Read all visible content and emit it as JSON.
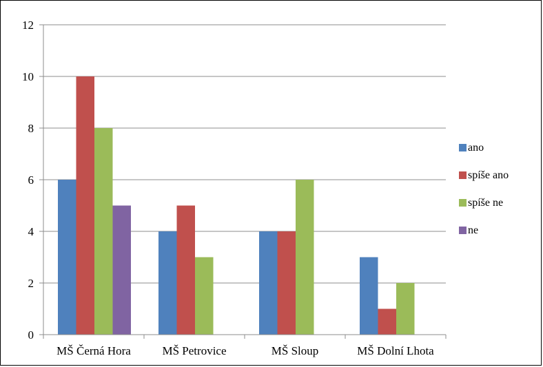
{
  "chart_data": {
    "type": "bar",
    "title": "",
    "xlabel": "",
    "ylabel": "",
    "categories": [
      "MŠ Černá Hora",
      "MŠ Petrovice",
      "MŠ Sloup",
      "MŠ Dolní Lhota"
    ],
    "series": [
      {
        "name": "ano",
        "color": "#4f81bd",
        "values": [
          6,
          4,
          4,
          3
        ]
      },
      {
        "name": "spíše ano",
        "color": "#c0504d",
        "values": [
          10,
          5,
          4,
          1
        ]
      },
      {
        "name": "spíše ne",
        "color": "#9bbb59",
        "values": [
          8,
          3,
          6,
          2
        ]
      },
      {
        "name": "ne",
        "color": "#8064a2",
        "values": [
          5,
          0,
          0,
          0
        ]
      }
    ],
    "ylim": [
      0,
      12
    ],
    "yticks": [
      0,
      2,
      4,
      6,
      8,
      10,
      12
    ],
    "yticklabels": [
      "0",
      "2",
      "4",
      "6",
      "8",
      "10",
      "12"
    ],
    "grid": true,
    "legend_position": "right"
  }
}
